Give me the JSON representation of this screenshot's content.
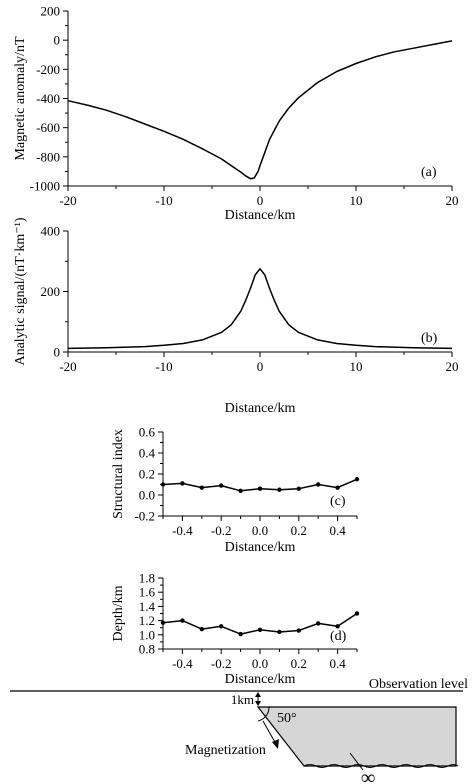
{
  "chart_data": [
    {
      "panel": "(a)",
      "type": "line",
      "xlabel": "Distance/km",
      "ylabel": "Magnetic anomaly/nT",
      "xlim": [
        -20,
        20
      ],
      "ylim": [
        -1000,
        200
      ],
      "xticks": [
        -20,
        -10,
        0,
        10,
        20
      ],
      "yticks": [
        -1000,
        -800,
        -600,
        -400,
        -200,
        0,
        200
      ],
      "grid": false,
      "x": [
        -20,
        -18,
        -16,
        -14,
        -12,
        -10,
        -8,
        -6,
        -5,
        -4,
        -3,
        -2,
        -1.5,
        -1,
        -0.6,
        -0.2,
        0,
        0.5,
        1,
        2,
        3,
        4,
        6,
        8,
        10,
        12,
        14,
        16,
        18,
        20
      ],
      "y": [
        -415,
        -445,
        -480,
        -525,
        -575,
        -625,
        -680,
        -745,
        -780,
        -815,
        -860,
        -905,
        -930,
        -950,
        -945,
        -900,
        -860,
        -770,
        -680,
        -555,
        -465,
        -395,
        -290,
        -215,
        -160,
        -115,
        -80,
        -55,
        -30,
        -5
      ]
    },
    {
      "panel": "(b)",
      "type": "line",
      "xlabel": "Distance/km",
      "ylabel": "Analytic signal/(nT·km⁻¹)",
      "xlim": [
        -20,
        20
      ],
      "ylim": [
        0,
        400
      ],
      "xticks": [
        -20,
        -10,
        0,
        10,
        20
      ],
      "yticks": [
        0,
        200,
        400
      ],
      "grid": false,
      "x": [
        -20,
        -16,
        -12,
        -10,
        -8,
        -6,
        -4,
        -3,
        -2,
        -1.5,
        -1,
        -0.5,
        0,
        0.5,
        1,
        1.5,
        2,
        3,
        4,
        6,
        8,
        10,
        12,
        16,
        20
      ],
      "y": [
        12,
        14,
        18,
        22,
        28,
        40,
        65,
        90,
        135,
        170,
        210,
        255,
        275,
        255,
        210,
        170,
        135,
        90,
        65,
        40,
        28,
        22,
        18,
        14,
        12
      ]
    },
    {
      "panel": "(c)",
      "type": "line",
      "xlabel": "Distance/km",
      "ylabel": "Structural index",
      "xlim": [
        -0.5,
        0.5
      ],
      "ylim": [
        -0.2,
        0.6
      ],
      "xticks": [
        -0.4,
        -0.2,
        0.0,
        0.2,
        0.4
      ],
      "xtick_labels": [
        "-0.4",
        "-0.2",
        "0.0",
        "0.2",
        "0.4"
      ],
      "yticks": [
        -0.2,
        0.0,
        0.2,
        0.4,
        0.6
      ],
      "ytick_labels": [
        "-0.2",
        "0.0",
        "0.2",
        "0.4",
        "0.6"
      ],
      "grid": false,
      "markers": true,
      "x": [
        -0.5,
        -0.4,
        -0.3,
        -0.2,
        -0.1,
        0.0,
        0.1,
        0.2,
        0.3,
        0.4,
        0.5
      ],
      "y": [
        0.1,
        0.11,
        0.07,
        0.09,
        0.04,
        0.06,
        0.05,
        0.06,
        0.1,
        0.07,
        0.15
      ]
    },
    {
      "panel": "(d)",
      "type": "line",
      "xlabel": "Distance/km",
      "ylabel": "Depth/km",
      "xlim": [
        -0.5,
        0.5
      ],
      "ylim": [
        0.8,
        1.8
      ],
      "xticks": [
        -0.4,
        -0.2,
        0.0,
        0.2,
        0.4
      ],
      "xtick_labels": [
        "-0.4",
        "-0.2",
        "0.0",
        "0.2",
        "0.4"
      ],
      "yticks": [
        0.8,
        1.0,
        1.2,
        1.4,
        1.6,
        1.8
      ],
      "ytick_labels": [
        "0.8",
        "1.0",
        "1.2",
        "1.4",
        "1.6",
        "1.8"
      ],
      "grid": false,
      "markers": true,
      "x": [
        -0.5,
        -0.4,
        -0.3,
        -0.2,
        -0.1,
        0.0,
        0.1,
        0.2,
        0.3,
        0.4,
        0.5
      ],
      "y": [
        1.17,
        1.2,
        1.08,
        1.12,
        1.01,
        1.07,
        1.04,
        1.06,
        1.16,
        1.12,
        1.3
      ]
    }
  ],
  "model_diagram": {
    "observation_label": "Observation level",
    "depth_label": "1km",
    "angle_label": "50°",
    "magnetization_label": "Magnetization",
    "infinity_label": "∞",
    "body_fill": "#d6d6d6"
  }
}
